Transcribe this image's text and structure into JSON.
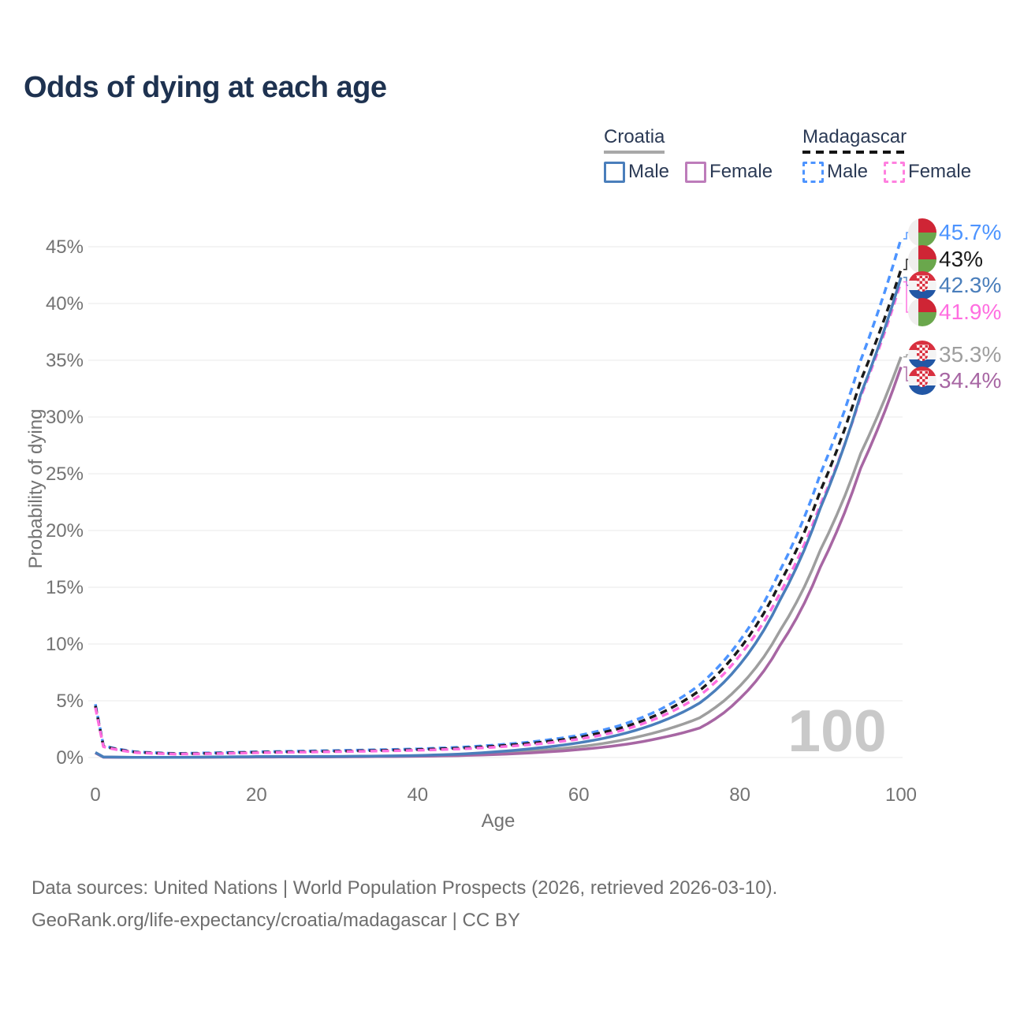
{
  "page": {
    "title": "Odds of dying at each age"
  },
  "legend": {
    "groups": [
      {
        "name": "Croatia",
        "style": "solid",
        "underline_color": "#a8a8a8",
        "items": [
          {
            "label": "Male",
            "color": "#4a7ebb"
          },
          {
            "label": "Female",
            "color": "#bd7cba"
          }
        ]
      },
      {
        "name": "Madagascar",
        "style": "dashed",
        "underline_color": "#141414",
        "items": [
          {
            "label": "Male",
            "color": "#4d94ff"
          },
          {
            "label": "Female",
            "color": "#ff80df"
          }
        ]
      }
    ]
  },
  "chart_data": {
    "type": "line",
    "title": "Odds of dying at each age",
    "xlabel": "Age",
    "ylabel": "Probability of dying",
    "x_ticks": [
      0,
      20,
      40,
      60,
      80,
      100
    ],
    "y_ticks_percent": [
      0,
      5,
      10,
      15,
      20,
      25,
      30,
      35,
      40,
      45
    ],
    "xlim": [
      0,
      100
    ],
    "ylim": [
      0,
      47
    ],
    "grid": "horizontal",
    "legend_position": "top-right",
    "watermark_hover_age": "100",
    "series": [
      {
        "name": "Madagascar Male",
        "country": "Madagascar",
        "sex": "male",
        "color": "#4d94ff",
        "dash": true,
        "points": [
          [
            0,
            4.7
          ],
          [
            1,
            1.05
          ],
          [
            5,
            0.5
          ],
          [
            10,
            0.36
          ],
          [
            15,
            0.42
          ],
          [
            20,
            0.5
          ],
          [
            25,
            0.56
          ],
          [
            30,
            0.62
          ],
          [
            35,
            0.68
          ],
          [
            40,
            0.76
          ],
          [
            45,
            0.9
          ],
          [
            50,
            1.12
          ],
          [
            55,
            1.45
          ],
          [
            60,
            1.95
          ],
          [
            65,
            2.8
          ],
          [
            70,
            4.2
          ],
          [
            75,
            6.4
          ],
          [
            80,
            10.3
          ],
          [
            85,
            16.5
          ],
          [
            90,
            25.0
          ],
          [
            95,
            35.0
          ],
          [
            100,
            45.7
          ]
        ]
      },
      {
        "name": "Madagascar Both sexes",
        "country": "Madagascar",
        "sex": "both",
        "color": "#1a1a1a",
        "dash": true,
        "points": [
          [
            0,
            4.55
          ],
          [
            1,
            1.0
          ],
          [
            5,
            0.47
          ],
          [
            10,
            0.33
          ],
          [
            15,
            0.38
          ],
          [
            20,
            0.46
          ],
          [
            25,
            0.51
          ],
          [
            30,
            0.56
          ],
          [
            35,
            0.62
          ],
          [
            40,
            0.7
          ],
          [
            45,
            0.82
          ],
          [
            50,
            1.02
          ],
          [
            55,
            1.32
          ],
          [
            60,
            1.78
          ],
          [
            65,
            2.55
          ],
          [
            70,
            3.85
          ],
          [
            75,
            5.9
          ],
          [
            80,
            9.6
          ],
          [
            85,
            15.4
          ],
          [
            90,
            23.5
          ],
          [
            95,
            33.2
          ],
          [
            100,
            43.0
          ]
        ]
      },
      {
        "name": "Madagascar Female",
        "country": "Madagascar",
        "sex": "female",
        "color": "#ff6ee0",
        "dash": true,
        "points": [
          [
            0,
            4.4
          ],
          [
            1,
            0.95
          ],
          [
            5,
            0.44
          ],
          [
            10,
            0.3
          ],
          [
            15,
            0.35
          ],
          [
            20,
            0.42
          ],
          [
            25,
            0.47
          ],
          [
            30,
            0.52
          ],
          [
            35,
            0.57
          ],
          [
            40,
            0.64
          ],
          [
            45,
            0.75
          ],
          [
            50,
            0.93
          ],
          [
            55,
            1.2
          ],
          [
            60,
            1.62
          ],
          [
            65,
            2.32
          ],
          [
            70,
            3.55
          ],
          [
            75,
            5.45
          ],
          [
            80,
            9.0
          ],
          [
            85,
            14.5
          ],
          [
            90,
            22.3
          ],
          [
            95,
            31.8
          ],
          [
            100,
            41.9
          ]
        ]
      },
      {
        "name": "Croatia Both sexes",
        "country": "Croatia",
        "sex": "both",
        "color": "#9e9e9e",
        "dash": false,
        "points": [
          [
            0,
            0.42
          ],
          [
            1,
            0.04
          ],
          [
            5,
            0.02
          ],
          [
            10,
            0.02
          ],
          [
            15,
            0.04
          ],
          [
            20,
            0.06
          ],
          [
            25,
            0.07
          ],
          [
            30,
            0.08
          ],
          [
            35,
            0.1
          ],
          [
            40,
            0.14
          ],
          [
            45,
            0.23
          ],
          [
            50,
            0.39
          ],
          [
            55,
            0.62
          ],
          [
            60,
            0.95
          ],
          [
            65,
            1.48
          ],
          [
            70,
            2.3
          ],
          [
            75,
            3.5
          ],
          [
            80,
            6.3
          ],
          [
            85,
            11.2
          ],
          [
            90,
            18.3
          ],
          [
            95,
            26.8
          ],
          [
            100,
            35.3
          ]
        ]
      },
      {
        "name": "Croatia Female",
        "country": "Croatia",
        "sex": "female",
        "color": "#a766a3",
        "dash": false,
        "points": [
          [
            0,
            0.4
          ],
          [
            1,
            0.03
          ],
          [
            5,
            0.015
          ],
          [
            10,
            0.015
          ],
          [
            15,
            0.03
          ],
          [
            20,
            0.04
          ],
          [
            25,
            0.05
          ],
          [
            30,
            0.06
          ],
          [
            35,
            0.08
          ],
          [
            40,
            0.11
          ],
          [
            45,
            0.17
          ],
          [
            50,
            0.28
          ],
          [
            55,
            0.45
          ],
          [
            60,
            0.7
          ],
          [
            65,
            1.08
          ],
          [
            70,
            1.7
          ],
          [
            75,
            2.6
          ],
          [
            80,
            5.2
          ],
          [
            85,
            9.9
          ],
          [
            90,
            16.8
          ],
          [
            95,
            25.5
          ],
          [
            100,
            34.4
          ]
        ]
      },
      {
        "name": "Croatia Male",
        "country": "Croatia",
        "sex": "male",
        "color": "#4a7ebb",
        "dash": false,
        "points": [
          [
            0,
            0.45
          ],
          [
            1,
            0.05
          ],
          [
            5,
            0.02
          ],
          [
            10,
            0.02
          ],
          [
            15,
            0.05
          ],
          [
            20,
            0.08
          ],
          [
            25,
            0.09
          ],
          [
            30,
            0.1
          ],
          [
            35,
            0.13
          ],
          [
            40,
            0.18
          ],
          [
            45,
            0.3
          ],
          [
            50,
            0.52
          ],
          [
            55,
            0.85
          ],
          [
            60,
            1.3
          ],
          [
            65,
            2.0
          ],
          [
            70,
            3.1
          ],
          [
            75,
            4.8
          ],
          [
            80,
            8.2
          ],
          [
            85,
            13.9
          ],
          [
            90,
            22.0
          ],
          [
            95,
            32.0
          ],
          [
            100,
            42.3
          ]
        ]
      }
    ],
    "end_labels": [
      {
        "text": "45.7%",
        "series": "Madagascar Male",
        "flag": "madagascar",
        "color": "#4d94ff"
      },
      {
        "text": "43%",
        "series": "Madagascar Both sexes",
        "flag": "madagascar",
        "color": "#1a1a1a"
      },
      {
        "text": "42.3%",
        "series": "Croatia Male",
        "flag": "croatia",
        "color": "#4a7ebb"
      },
      {
        "text": "41.9%",
        "series": "Madagascar Female",
        "flag": "madagascar",
        "color": "#ff6ee0"
      },
      {
        "text": "35.3%",
        "series": "Croatia Both sexes",
        "flag": "croatia",
        "color": "#9e9e9e"
      },
      {
        "text": "34.4%",
        "series": "Croatia Female",
        "flag": "croatia",
        "color": "#a766a3"
      }
    ]
  },
  "footer": {
    "line1": "Data sources: United Nations | World Population Prospects (2026, retrieved 2026-03-10).",
    "line2": "GeoRank.org/life-expectancy/croatia/madagascar | CC BY"
  }
}
